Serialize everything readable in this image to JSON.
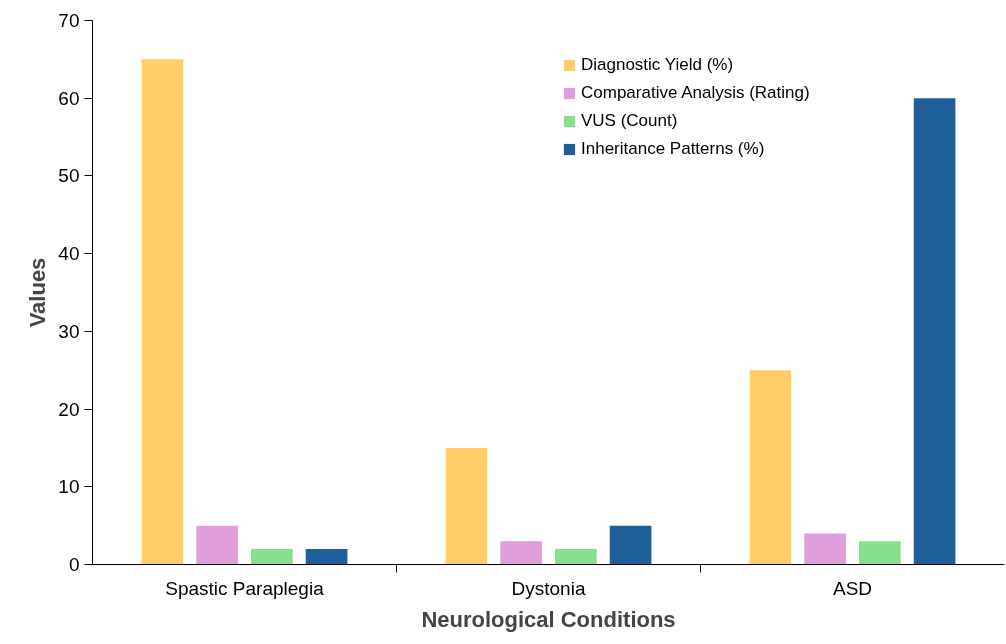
{
  "chart_data": {
    "type": "bar",
    "xlabel": "Neurological Conditions",
    "ylabel": "Values",
    "categories": [
      "Spastic Paraplegia",
      "Dystonia",
      "ASD"
    ],
    "series": [
      {
        "name": "Diagnostic Yield (%)",
        "color": "#ffcc66",
        "values": [
          65,
          15,
          25
        ]
      },
      {
        "name": "Comparative Analysis (Rating)",
        "color": "#e09ede",
        "values": [
          5,
          3,
          4
        ]
      },
      {
        "name": "VUS (Count)",
        "color": "#88e08c",
        "values": [
          2,
          2,
          3
        ]
      },
      {
        "name": "Inheritance Patterns (%)",
        "color": "#1f5f99",
        "values": [
          2,
          5,
          60
        ]
      }
    ],
    "ylim": [
      0,
      70
    ],
    "yticks": [
      0,
      10,
      20,
      30,
      40,
      50,
      60,
      70
    ],
    "grid": false,
    "legend": "top right"
  }
}
